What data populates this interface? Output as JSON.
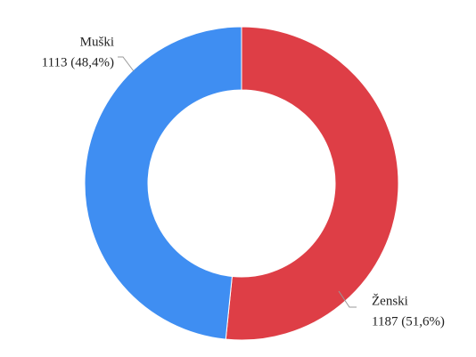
{
  "chart_data": {
    "type": "donut",
    "categories": [
      "Ženski",
      "Muški"
    ],
    "values": [
      1187,
      1113
    ],
    "value_labels": [
      "1187 (51,6%)",
      "1113 (48,4%)"
    ],
    "colors": [
      "#de3e46",
      "#3f8ef2"
    ]
  }
}
